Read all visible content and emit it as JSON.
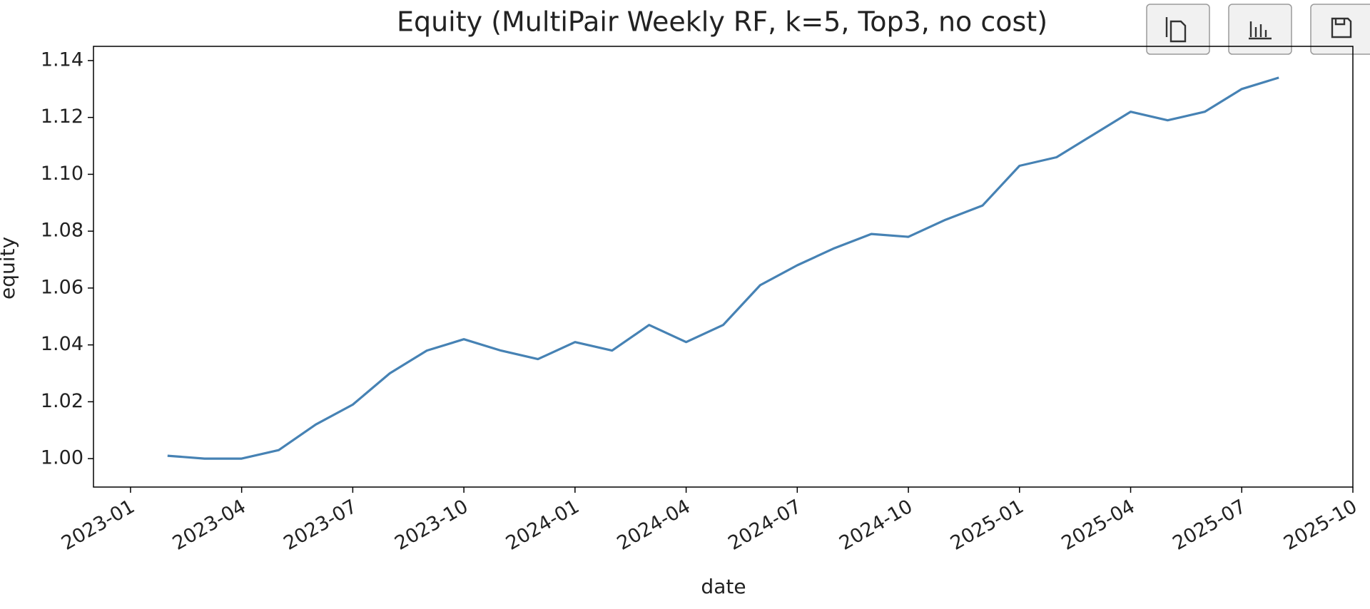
{
  "chart_data": {
    "type": "line",
    "title": "Equity (MultiPair Weekly RF, k=5, Top3, no cost)",
    "x_label": "date",
    "y_label": "equity",
    "x": [
      "2023-02",
      "2023-03",
      "2023-04",
      "2023-05",
      "2023-06",
      "2023-07",
      "2023-08",
      "2023-09",
      "2023-10",
      "2023-11",
      "2023-12",
      "2024-01",
      "2024-02",
      "2024-03",
      "2024-04",
      "2024-05",
      "2024-06",
      "2024-07",
      "2024-08",
      "2024-09",
      "2024-10",
      "2024-11",
      "2024-12",
      "2025-01",
      "2025-02",
      "2025-03",
      "2025-04",
      "2025-05",
      "2025-06",
      "2025-07",
      "2025-08"
    ],
    "values": [
      1.001,
      1.0,
      1.0,
      1.003,
      1.012,
      1.019,
      1.03,
      1.038,
      1.042,
      1.038,
      1.035,
      1.041,
      1.038,
      1.047,
      1.041,
      1.047,
      1.061,
      1.068,
      1.074,
      1.079,
      1.078,
      1.084,
      1.089,
      1.103,
      1.106,
      1.114,
      1.122,
      1.119,
      1.122,
      1.13,
      1.134
    ],
    "color": "#4682b4",
    "xlim": [
      "2022-12",
      "2025-10"
    ],
    "xticks": [
      "2023-01",
      "2023-04",
      "2023-07",
      "2023-10",
      "2024-01",
      "2024-04",
      "2024-07",
      "2024-10",
      "2025-01",
      "2025-04",
      "2025-07",
      "2025-10"
    ],
    "ylim": [
      0.99,
      1.145
    ],
    "yticks": [
      {
        "value": 1.0,
        "label": "1.00"
      },
      {
        "value": 1.02,
        "label": "1.02"
      },
      {
        "value": 1.04,
        "label": "1.04"
      },
      {
        "value": 1.06,
        "label": "1.06"
      },
      {
        "value": 1.08,
        "label": "1.08"
      },
      {
        "value": 1.1,
        "label": "1.10"
      },
      {
        "value": 1.12,
        "label": "1.12"
      },
      {
        "value": 1.14,
        "label": "1.14"
      }
    ],
    "grid": false
  }
}
